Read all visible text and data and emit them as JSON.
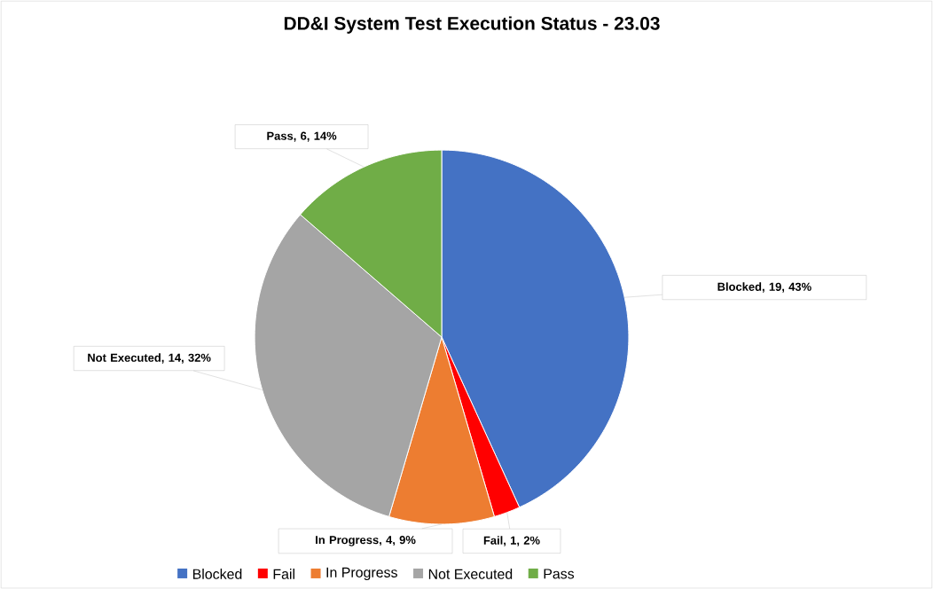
{
  "chart_data": {
    "type": "pie",
    "title": "DD&I System Test Execution Status - 23.03",
    "categories": [
      "Blocked",
      "Fail",
      "In Progress",
      "Not Executed",
      "Pass"
    ],
    "values": [
      19,
      1,
      4,
      14,
      6
    ],
    "colors": [
      "#4472c4",
      "#ff0000",
      "#ed7d31",
      "#a5a5a5",
      "#70ad47"
    ],
    "value_labels": [
      "Blocked, 19, 43%",
      "Fail, 1, 2%",
      "In Progress, 4, 9%",
      "Not Executed, 14, 32%",
      "Pass, 6, 14%"
    ],
    "legend": "bottom"
  }
}
